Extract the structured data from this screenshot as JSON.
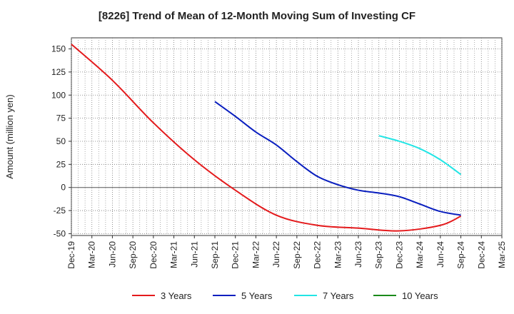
{
  "chart_data": {
    "type": "line",
    "title": "[8226]  Trend of Mean of 12-Month Moving Sum of Investing CF",
    "xlabel": "",
    "ylabel": "Amount (million yen)",
    "ylim": [
      -52,
      162
    ],
    "yticks": [
      150,
      125,
      100,
      75,
      50,
      25,
      0,
      -25,
      -50
    ],
    "x_tick_labels": [
      "Dec-19",
      "Mar-20",
      "Jun-20",
      "Sep-20",
      "Dec-20",
      "Mar-21",
      "Jun-21",
      "Sep-21",
      "Dec-21",
      "Mar-22",
      "Jun-22",
      "Sep-22",
      "Dec-22",
      "Mar-23",
      "Jun-23",
      "Sep-23",
      "Dec-23",
      "Mar-24",
      "Jun-24",
      "Sep-24",
      "Dec-24",
      "Mar-25"
    ],
    "grid": true,
    "legend_position": "bottom",
    "series": [
      {
        "name": "3 Years",
        "color": "#e41a1c",
        "points": [
          [
            0,
            155
          ],
          [
            1,
            116
          ],
          [
            2,
            70
          ],
          [
            3,
            30
          ],
          [
            4,
            -3
          ],
          [
            5,
            -30
          ],
          [
            6,
            -41
          ],
          [
            7,
            -44
          ],
          [
            8,
            -47
          ],
          [
            9,
            -41
          ],
          [
            10,
            -31
          ]
        ],
        "x_tick_index_of_first": 0,
        "x_values": [
          "Dec-19",
          "Jun-20",
          "Dec-20",
          "Jun-21",
          "Dec-21",
          "Jun-22",
          "Dec-22",
          "Jun-23",
          "Dec-23",
          "Jun-24",
          "Sep-24"
        ],
        "y_values": [
          155,
          116,
          70,
          30,
          -3,
          -30,
          -41,
          -44,
          -47,
          -41,
          -31
        ]
      },
      {
        "name": "5 Years",
        "color": "#0a1fbf",
        "x_values": [
          "Sep-21",
          "Dec-21",
          "Mar-22",
          "Jun-22",
          "Sep-22",
          "Dec-22",
          "Mar-23",
          "Jun-23",
          "Sep-23",
          "Dec-23",
          "Mar-24",
          "Jun-24",
          "Sep-24"
        ],
        "y_values": [
          93,
          77,
          60,
          46,
          28,
          12,
          3,
          -3,
          -6,
          -10,
          -18,
          -26,
          -30
        ]
      },
      {
        "name": "7 Years",
        "color": "#22e5e5",
        "x_values": [
          "Sep-23",
          "Dec-23",
          "Mar-24",
          "Jun-24",
          "Sep-24"
        ],
        "y_values": [
          56,
          50,
          42,
          30,
          14
        ]
      },
      {
        "name": "10 Years",
        "color": "#1a8a1a",
        "x_values": [],
        "y_values": []
      }
    ]
  }
}
